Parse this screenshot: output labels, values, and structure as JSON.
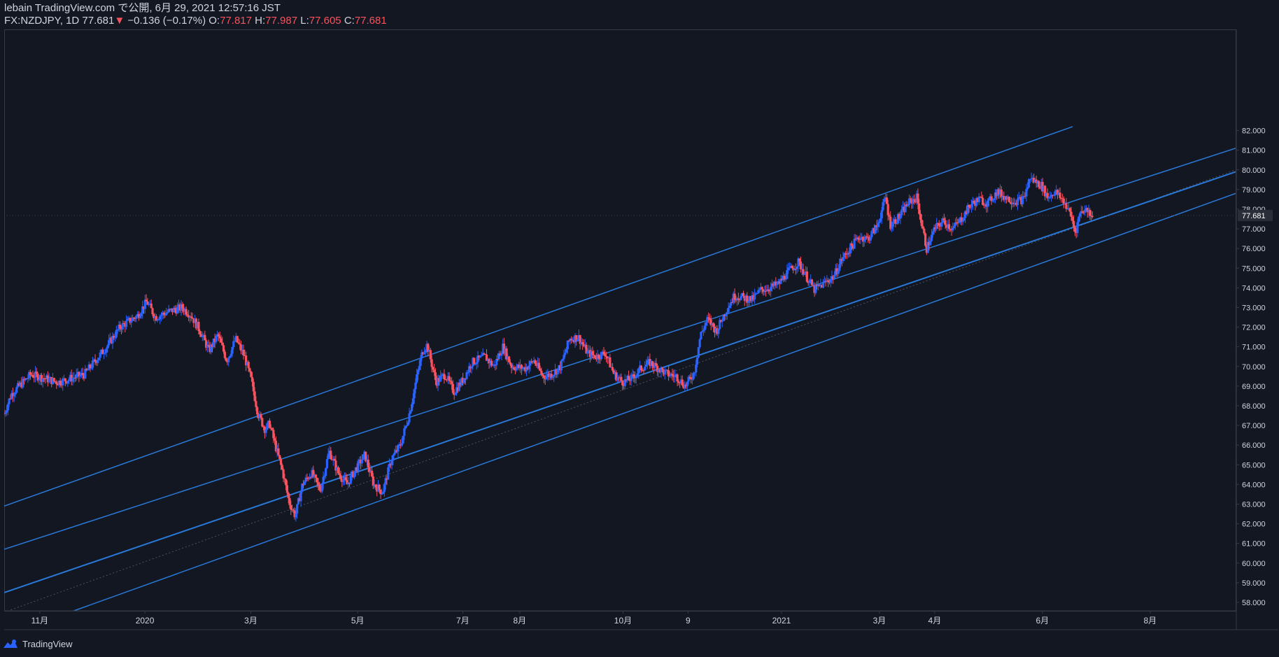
{
  "header": {
    "line1": "lebain TradingView.com で公開, 6月 29, 2021 12:57:16 JST",
    "symbol": "FX:NZDJPY, 1D",
    "last": "77.681",
    "arrow": "▼",
    "change": "−0.136 (−0.17%)",
    "o_label": "O:",
    "o_val": "77.817",
    "h_label": "H:",
    "h_val": "77.987",
    "l_label": "L:",
    "l_val": "77.605",
    "c_label": "C:",
    "c_val": "77.681"
  },
  "footer": {
    "brand": "TradingView",
    "logo_icon": "tradingview-logo-icon"
  },
  "colors": {
    "background": "#131722",
    "up": "#2962ff",
    "down": "#f7525f",
    "channel": "#2979d9",
    "axis_text": "#d1d4dc"
  },
  "chart_data": {
    "type": "candlestick",
    "symbol": "FX:NZDJPY",
    "interval": "1D",
    "ylim": [
      57.5,
      82.5
    ],
    "y_ticks": [
      "58.000",
      "59.000",
      "60.000",
      "61.000",
      "62.000",
      "63.000",
      "64.000",
      "65.000",
      "66.000",
      "67.000",
      "68.000",
      "69.000",
      "70.000",
      "71.000",
      "72.000",
      "73.000",
      "74.000",
      "75.000",
      "76.000",
      "77.000",
      "78.000",
      "79.000",
      "80.000",
      "81.000",
      "82.000"
    ],
    "last_price_label": "77.681",
    "x_ticks": [
      "11月",
      "2020",
      "3月",
      "5月",
      "7月",
      "8月",
      "10月",
      "9",
      "2021",
      "3月",
      "4月",
      "6月",
      "8月"
    ],
    "x_tick_days": [
      40,
      158,
      277,
      397,
      515,
      579,
      695,
      768,
      873,
      983,
      1045,
      1166,
      1287
    ],
    "visible_days": [
      0,
      1383
    ],
    "price_path": [
      [
        0,
        67.6
      ],
      [
        8,
        68.6
      ],
      [
        30,
        69.6
      ],
      [
        60,
        69.2
      ],
      [
        90,
        69.6
      ],
      [
        115,
        71.0
      ],
      [
        130,
        72.0
      ],
      [
        150,
        72.6
      ],
      [
        160,
        73.3
      ],
      [
        170,
        72.5
      ],
      [
        185,
        72.8
      ],
      [
        200,
        73.0
      ],
      [
        210,
        72.6
      ],
      [
        220,
        71.8
      ],
      [
        230,
        70.8
      ],
      [
        240,
        71.6
      ],
      [
        250,
        70.3
      ],
      [
        260,
        71.4
      ],
      [
        270,
        70.5
      ],
      [
        278,
        69.2
      ],
      [
        285,
        67.6
      ],
      [
        293,
        66.8
      ],
      [
        298,
        67.1
      ],
      [
        305,
        65.9
      ],
      [
        313,
        64.6
      ],
      [
        320,
        63.1
      ],
      [
        327,
        62.4
      ],
      [
        335,
        64.0
      ],
      [
        345,
        64.6
      ],
      [
        355,
        63.7
      ],
      [
        365,
        65.7
      ],
      [
        375,
        64.6
      ],
      [
        385,
        64.0
      ],
      [
        395,
        64.8
      ],
      [
        405,
        65.5
      ],
      [
        415,
        64.0
      ],
      [
        425,
        63.6
      ],
      [
        435,
        65.3
      ],
      [
        445,
        66.0
      ],
      [
        455,
        67.6
      ],
      [
        465,
        69.8
      ],
      [
        470,
        70.8
      ],
      [
        475,
        71.1
      ],
      [
        485,
        69.2
      ],
      [
        495,
        69.6
      ],
      [
        505,
        68.7
      ],
      [
        515,
        69.3
      ],
      [
        525,
        70.2
      ],
      [
        540,
        70.5
      ],
      [
        550,
        70.0
      ],
      [
        560,
        71.0
      ],
      [
        570,
        70.0
      ],
      [
        585,
        69.9
      ],
      [
        595,
        70.3
      ],
      [
        605,
        69.5
      ],
      [
        615,
        69.6
      ],
      [
        625,
        70.0
      ],
      [
        635,
        71.4
      ],
      [
        645,
        71.5
      ],
      [
        655,
        70.7
      ],
      [
        665,
        70.5
      ],
      [
        675,
        70.7
      ],
      [
        685,
        69.6
      ],
      [
        695,
        69.2
      ],
      [
        705,
        69.4
      ],
      [
        715,
        69.9
      ],
      [
        725,
        70.2
      ],
      [
        735,
        69.9
      ],
      [
        745,
        69.6
      ],
      [
        755,
        69.5
      ],
      [
        765,
        69.0
      ],
      [
        775,
        69.7
      ],
      [
        782,
        71.6
      ],
      [
        790,
        72.4
      ],
      [
        800,
        71.8
      ],
      [
        810,
        72.8
      ],
      [
        820,
        73.6
      ],
      [
        830,
        73.5
      ],
      [
        840,
        73.4
      ],
      [
        850,
        73.9
      ],
      [
        860,
        74.0
      ],
      [
        870,
        74.2
      ],
      [
        880,
        74.8
      ],
      [
        892,
        75.3
      ],
      [
        902,
        74.5
      ],
      [
        910,
        73.9
      ],
      [
        920,
        74.2
      ],
      [
        932,
        74.6
      ],
      [
        940,
        75.4
      ],
      [
        950,
        76.0
      ],
      [
        960,
        76.6
      ],
      [
        970,
        76.5
      ],
      [
        980,
        77.1
      ],
      [
        990,
        78.6
      ],
      [
        995,
        77.2
      ],
      [
        1005,
        77.6
      ],
      [
        1015,
        78.3
      ],
      [
        1025,
        78.6
      ],
      [
        1030,
        77.3
      ],
      [
        1036,
        76.0
      ],
      [
        1045,
        77.0
      ],
      [
        1055,
        77.4
      ],
      [
        1065,
        77.0
      ],
      [
        1075,
        77.5
      ],
      [
        1085,
        78.2
      ],
      [
        1095,
        78.5
      ],
      [
        1105,
        78.3
      ],
      [
        1115,
        78.9
      ],
      [
        1125,
        78.6
      ],
      [
        1135,
        78.4
      ],
      [
        1145,
        78.5
      ],
      [
        1152,
        79.6
      ],
      [
        1158,
        79.4
      ],
      [
        1165,
        79.2
      ],
      [
        1172,
        78.6
      ],
      [
        1180,
        78.9
      ],
      [
        1190,
        78.4
      ],
      [
        1198,
        77.7
      ],
      [
        1203,
        76.8
      ],
      [
        1208,
        77.8
      ],
      [
        1213,
        78.0
      ],
      [
        1218,
        77.9
      ],
      [
        1223,
        77.681
      ]
    ],
    "channel_lines": [
      {
        "name": "upper",
        "points": [
          [
            0,
            62.9
          ],
          [
            1200,
            82.2
          ]
        ],
        "width": 1.5
      },
      {
        "name": "mid-upper",
        "points": [
          [
            0,
            60.7
          ],
          [
            1383,
            81.1
          ]
        ],
        "width": 1.5
      },
      {
        "name": "median",
        "points": [
          [
            0,
            58.5
          ],
          [
            1383,
            79.9
          ]
        ],
        "width": 2
      },
      {
        "name": "lower",
        "points": [
          [
            0,
            56.3
          ],
          [
            1383,
            78.8
          ]
        ],
        "width": 1.5
      }
    ],
    "dotted_line": {
      "points": [
        [
          0,
          57.5
        ],
        [
          1383,
          80.0
        ]
      ]
    }
  }
}
